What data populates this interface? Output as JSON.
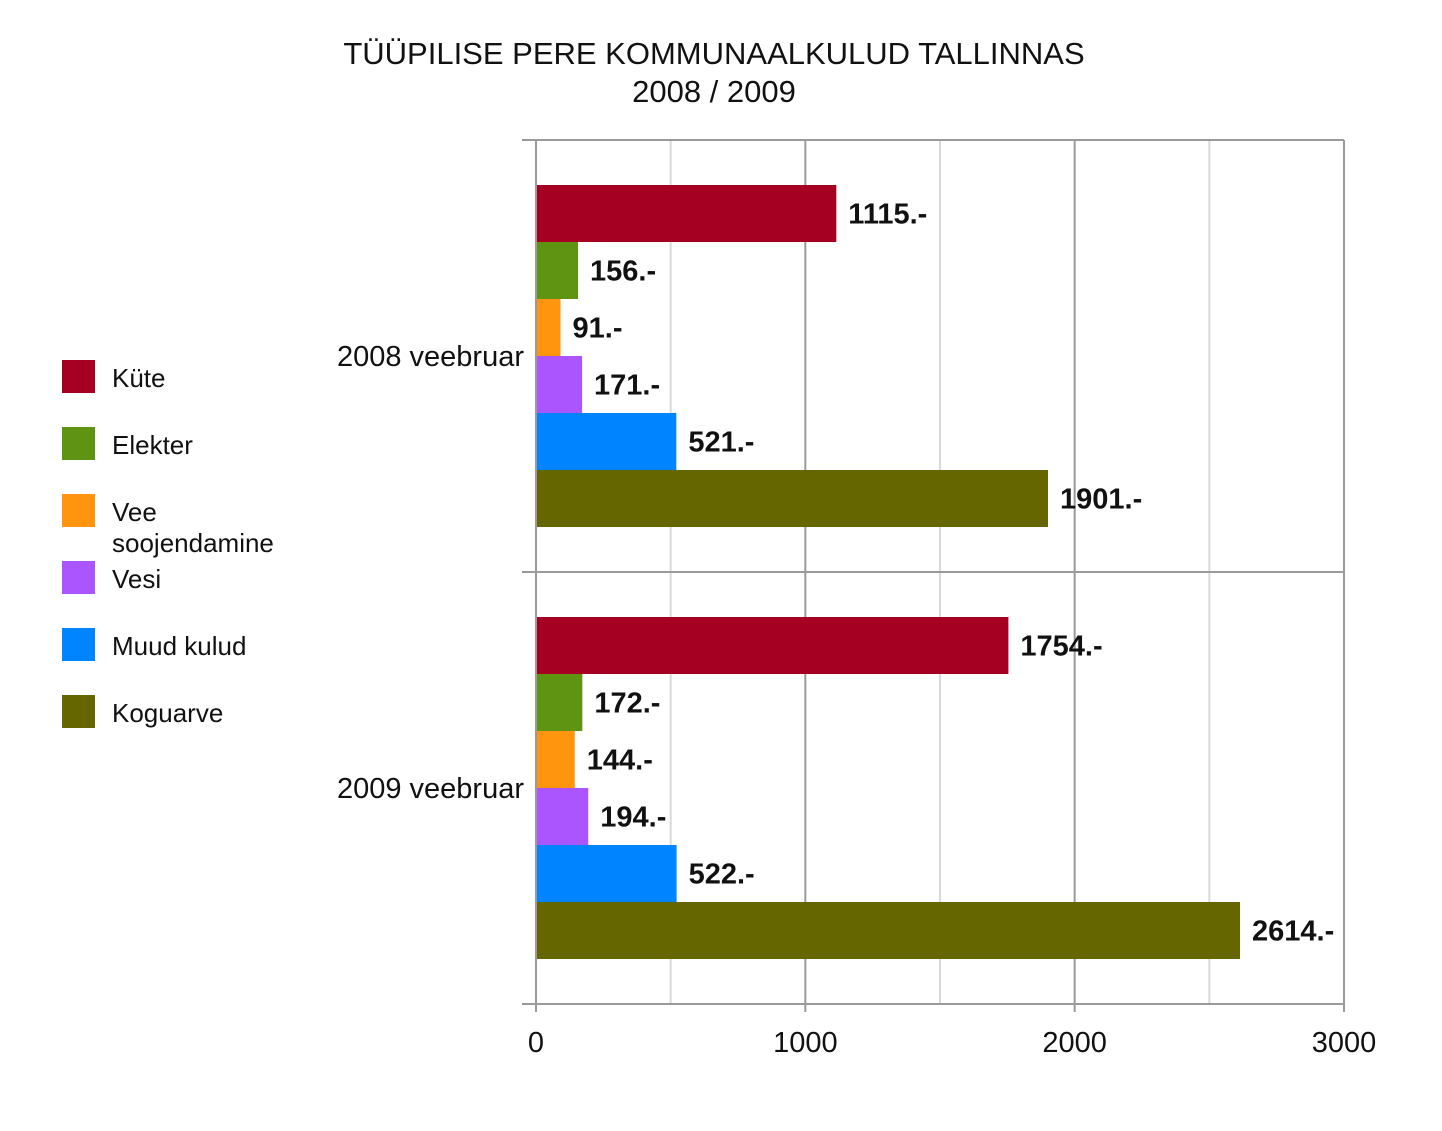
{
  "chart_data": {
    "type": "bar",
    "orientation": "horizontal",
    "title": "TÜÜPILISE PERE KOMMUNAALKULUD TALLINNAS",
    "subtitle": "2008 / 2009",
    "xlabel": "",
    "ylabel": "",
    "xlim": [
      0,
      3000
    ],
    "xticks": [
      "0",
      "1000",
      "2000",
      "3000"
    ],
    "tick_values": [
      0,
      1000,
      2000,
      3000
    ],
    "grid": true,
    "legend_position": "left",
    "categories": [
      "2008 veebruar",
      "2009 veebruar"
    ],
    "series": [
      {
        "name": "Küte",
        "color": "#a50021",
        "values": [
          1115,
          1754
        ],
        "labels": [
          "1115.-",
          "1754.-"
        ]
      },
      {
        "name": "Elekter",
        "color": "#5f9412",
        "values": [
          156,
          172
        ],
        "labels": [
          "156.-",
          "172.-"
        ]
      },
      {
        "name": "Vee soojendamine",
        "name_lines": [
          "Vee",
          "soojendamine"
        ],
        "color": "#ff950e",
        "values": [
          91,
          144
        ],
        "labels": [
          "91.-",
          "144.-"
        ]
      },
      {
        "name": "Vesi",
        "color": "#aa55ff",
        "values": [
          171,
          194
        ],
        "labels": [
          "171.-",
          "194.-"
        ]
      },
      {
        "name": "Muud kulud",
        "color": "#0084ff",
        "values": [
          521,
          522
        ],
        "labels": [
          "521.-",
          "522.-"
        ]
      },
      {
        "name": "Koguarve",
        "color": "#666600",
        "values": [
          1901,
          2614
        ],
        "labels": [
          "1901.-",
          "2614.-"
        ]
      }
    ]
  }
}
